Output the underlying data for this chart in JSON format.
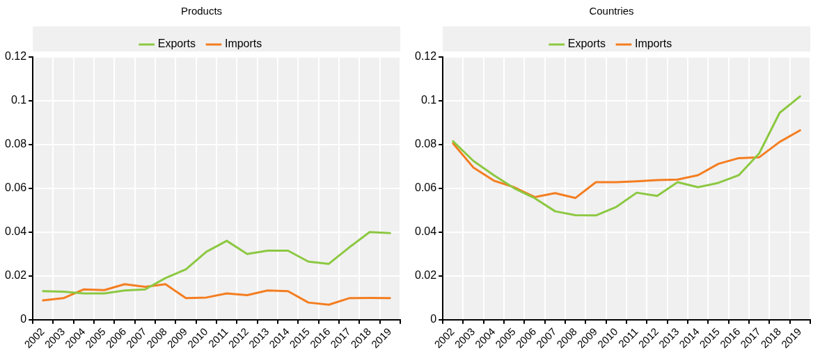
{
  "chart_data": [
    {
      "type": "line",
      "title": "Products",
      "categories": [
        "2002",
        "2003",
        "2004",
        "2005",
        "2006",
        "2007",
        "2008",
        "2009",
        "2010",
        "2011",
        "2012",
        "2013",
        "2014",
        "2015",
        "2016",
        "2017",
        "2018",
        "2019"
      ],
      "series": [
        {
          "name": "Exports",
          "color": "#8cc841",
          "values": [
            0.013,
            0.0128,
            0.012,
            0.012,
            0.0133,
            0.0138,
            0.019,
            0.023,
            0.031,
            0.036,
            0.03,
            0.0315,
            0.0315,
            0.0265,
            0.0255,
            0.033,
            0.04,
            0.0395
          ]
        },
        {
          "name": "Imports",
          "color": "#f47d20",
          "values": [
            0.0088,
            0.0098,
            0.0138,
            0.0135,
            0.0162,
            0.015,
            0.0162,
            0.0098,
            0.0101,
            0.012,
            0.0112,
            0.0133,
            0.013,
            0.0078,
            0.0068,
            0.0098,
            0.0099,
            0.0098
          ]
        }
      ],
      "ylim": [
        0,
        0.12
      ],
      "yticks": [
        0,
        0.02,
        0.04,
        0.06,
        0.08,
        0.1,
        0.12
      ],
      "grid": true,
      "legend": "top",
      "marker": "none",
      "line_style": "solid"
    },
    {
      "type": "line",
      "title": "Countries",
      "categories": [
        "2002",
        "2003",
        "2004",
        "2005",
        "2006",
        "2007",
        "2008",
        "2009",
        "2010",
        "2011",
        "2012",
        "2013",
        "2014",
        "2015",
        "2016",
        "2017",
        "2018",
        "2019"
      ],
      "series": [
        {
          "name": "Exports",
          "color": "#8cc841",
          "values": [
            0.0815,
            0.0725,
            0.066,
            0.06,
            0.0555,
            0.0495,
            0.0477,
            0.0476,
            0.0515,
            0.058,
            0.0565,
            0.0628,
            0.0605,
            0.0625,
            0.066,
            0.076,
            0.0945,
            0.102
          ]
        },
        {
          "name": "Imports",
          "color": "#f47d20",
          "values": [
            0.0805,
            0.0695,
            0.0635,
            0.0605,
            0.056,
            0.0578,
            0.0556,
            0.0628,
            0.0628,
            0.0632,
            0.0638,
            0.064,
            0.066,
            0.0712,
            0.0738,
            0.0742,
            0.0812,
            0.0865
          ]
        }
      ],
      "ylim": [
        0,
        0.12
      ],
      "yticks": [
        0,
        0.02,
        0.04,
        0.06,
        0.08,
        0.1,
        0.12
      ],
      "grid": true,
      "legend": "top",
      "marker": "none",
      "line_style": "solid"
    }
  ]
}
